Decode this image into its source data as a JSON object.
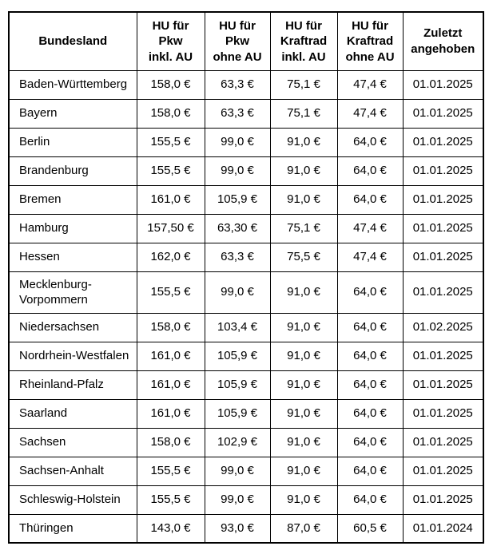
{
  "colors": {
    "border": "#000000",
    "text": "#000000",
    "background": "#ffffff"
  },
  "chart_data": {
    "type": "table",
    "columns": [
      "Bundesland",
      "HU für\nPkw\ninkl. AU",
      "HU für\nPkw\nohne AU",
      "HU für\nKraftrad\ninkl. AU",
      "HU für\nKraftrad\nohne AU",
      "Zuletzt\nangehoben"
    ],
    "rows": [
      [
        "Baden-Württemberg",
        "158,0 €",
        "63,3 €",
        "75,1 €",
        "47,4 €",
        "01.01.2025"
      ],
      [
        "Bayern",
        "158,0 €",
        "63,3 €",
        "75,1 €",
        "47,4 €",
        "01.01.2025"
      ],
      [
        "Berlin",
        "155,5 €",
        "99,0 €",
        "91,0 €",
        "64,0 €",
        "01.01.2025"
      ],
      [
        "Brandenburg",
        "155,5 €",
        "99,0 €",
        "91,0 €",
        "64,0 €",
        "01.01.2025"
      ],
      [
        "Bremen",
        "161,0 €",
        "105,9 €",
        "91,0 €",
        "64,0 €",
        "01.01.2025"
      ],
      [
        "Hamburg",
        "157,50 €",
        "63,30 €",
        "75,1 €",
        "47,4 €",
        "01.01.2025"
      ],
      [
        "Hessen",
        "162,0 €",
        "63,3 €",
        "75,5 €",
        "47,4 €",
        "01.01.2025"
      ],
      [
        "Mecklenburg-Vorpommern",
        "155,5 €",
        "99,0 €",
        "91,0 €",
        "64,0 €",
        "01.01.2025"
      ],
      [
        "Niedersachsen",
        "158,0 €",
        "103,4 €",
        "91,0 €",
        "64,0 €",
        "01.02.2025"
      ],
      [
        "Nordrhein-Westfalen",
        "161,0 €",
        "105,9 €",
        "91,0 €",
        "64,0 €",
        "01.01.2025"
      ],
      [
        "Rheinland-Pfalz",
        "161,0 €",
        "105,9 €",
        "91,0 €",
        "64,0 €",
        "01.01.2025"
      ],
      [
        "Saarland",
        "161,0 €",
        "105,9 €",
        "91,0 €",
        "64,0 €",
        "01.01.2025"
      ],
      [
        "Sachsen",
        "158,0 €",
        "102,9 €",
        "91,0 €",
        "64,0 €",
        "01.01.2025"
      ],
      [
        "Sachsen-Anhalt",
        "155,5 €",
        "99,0 €",
        "91,0 €",
        "64,0 €",
        "01.01.2025"
      ],
      [
        "Schleswig-Holstein",
        "155,5 €",
        "99,0 €",
        "91,0 €",
        "64,0 €",
        "01.01.2025"
      ],
      [
        "Thüringen",
        "143,0 €",
        "93,0 €",
        "87,0 €",
        "60,5 €",
        "01.01.2024"
      ]
    ]
  }
}
